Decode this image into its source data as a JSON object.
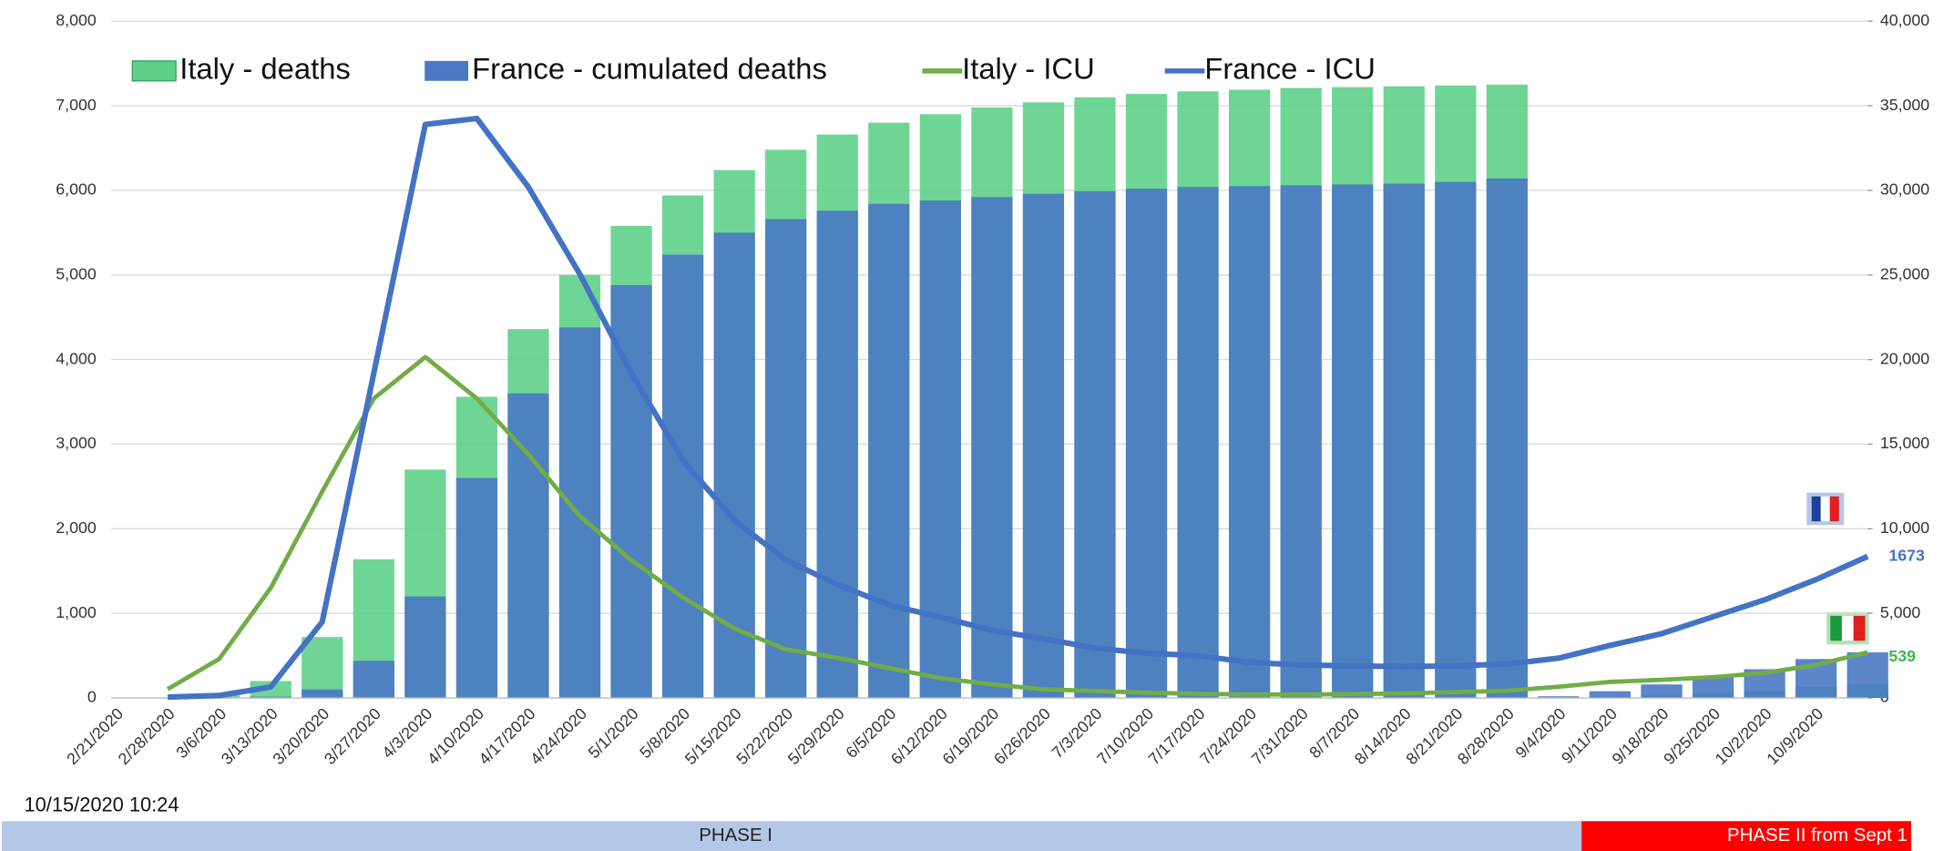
{
  "chart_data": {
    "type": "bar",
    "categories": [
      "2/21/2020",
      "2/28/2020",
      "3/6/2020",
      "3/13/2020",
      "3/20/2020",
      "3/27/2020",
      "4/3/2020",
      "4/10/2020",
      "4/17/2020",
      "4/24/2020",
      "5/1/2020",
      "5/8/2020",
      "5/15/2020",
      "5/22/2020",
      "5/29/2020",
      "6/5/2020",
      "6/12/2020",
      "6/19/2020",
      "6/26/2020",
      "7/3/2020",
      "7/10/2020",
      "7/17/2020",
      "7/24/2020",
      "7/31/2020",
      "8/7/2020",
      "8/14/2020",
      "8/21/2020",
      "8/28/2020",
      "9/4/2020",
      "9/11/2020",
      "9/18/2020",
      "9/25/2020",
      "10/2/2020",
      "10/9/2020",
      null
    ],
    "series": [
      {
        "name": "Italy - deaths",
        "type": "bar",
        "axis": "y2",
        "color": "#5fd08a",
        "values": [
          1,
          20,
          150,
          1000,
          3600,
          8200,
          13500,
          17800,
          21800,
          25000,
          27900,
          29700,
          31200,
          32400,
          33300,
          34000,
          34500,
          34900,
          35200,
          35500,
          35700,
          35850,
          35950,
          36050,
          36100,
          36150,
          36200,
          36250,
          30,
          80,
          150,
          250,
          400,
          650,
          800
        ]
      },
      {
        "name": "France - cumulated deaths",
        "type": "bar",
        "axis": "y2",
        "color": "#4a78c4",
        "values": [
          null,
          null,
          10,
          80,
          500,
          2200,
          6000,
          13000,
          18000,
          21900,
          24400,
          26200,
          27500,
          28300,
          28800,
          29200,
          29400,
          29600,
          29800,
          29950,
          30100,
          30200,
          30250,
          30300,
          30350,
          30400,
          30500,
          30700,
          100,
          400,
          800,
          1200,
          1700,
          2300,
          2700
        ]
      },
      {
        "name": "Italy - ICU",
        "type": "line",
        "color": "#70ad47",
        "values": [
          null,
          105,
          462,
          1300,
          2440,
          3540,
          4030,
          3540,
          2880,
          2150,
          1630,
          1190,
          820,
          575,
          475,
          353,
          236,
          161,
          103,
          82,
          62,
          49,
          41,
          41,
          45,
          55,
          69,
          86,
          133,
          190,
          215,
          246,
          297,
          390,
          539
        ]
      },
      {
        "name": "France - ICU",
        "type": "line",
        "color": "#4472c4",
        "values": [
          null,
          10,
          30,
          130,
          900,
          3840,
          6780,
          6850,
          6040,
          5010,
          3840,
          2810,
          2100,
          1630,
          1340,
          1100,
          955,
          800,
          700,
          590,
          530,
          500,
          420,
          390,
          380,
          370,
          380,
          400,
          470,
          620,
          760,
          960,
          1160,
          1400,
          1673
        ]
      }
    ],
    "ylim": [
      0,
      8000
    ],
    "yticks": [
      0,
      {
        "value": 1000,
        "label": "1,000"
      },
      {
        "value": 2000,
        "label": "2,000"
      },
      {
        "value": 3000,
        "label": "3,000"
      },
      {
        "value": 4000,
        "label": "4,000"
      },
      {
        "value": 5000,
        "label": "5,000"
      },
      {
        "value": 6000,
        "label": "6,000"
      },
      {
        "value": 7000,
        "label": "7,000"
      },
      {
        "value": 8000,
        "label": "8,000"
      }
    ],
    "y2lim": [
      0,
      40000
    ],
    "y2ticks": [
      0,
      {
        "value": 5000,
        "label": "5,000"
      },
      {
        "value": 10000,
        "label": "10,000"
      },
      {
        "value": 15000,
        "label": "15,000"
      },
      {
        "value": 20000,
        "label": "20,000"
      },
      {
        "value": 25000,
        "label": "25,000"
      },
      {
        "value": 30000,
        "label": "30,000"
      },
      {
        "value": 35000,
        "label": "35,000"
      },
      {
        "value": 40000,
        "label": "40,000"
      }
    ],
    "grid": true,
    "timestamp": "10/15/2020 10:24",
    "phases": [
      {
        "label": "PHASE I",
        "color": "#b4c7e7"
      },
      {
        "label": "PHASE II from Sept 1",
        "color": "#ff0000"
      }
    ]
  }
}
